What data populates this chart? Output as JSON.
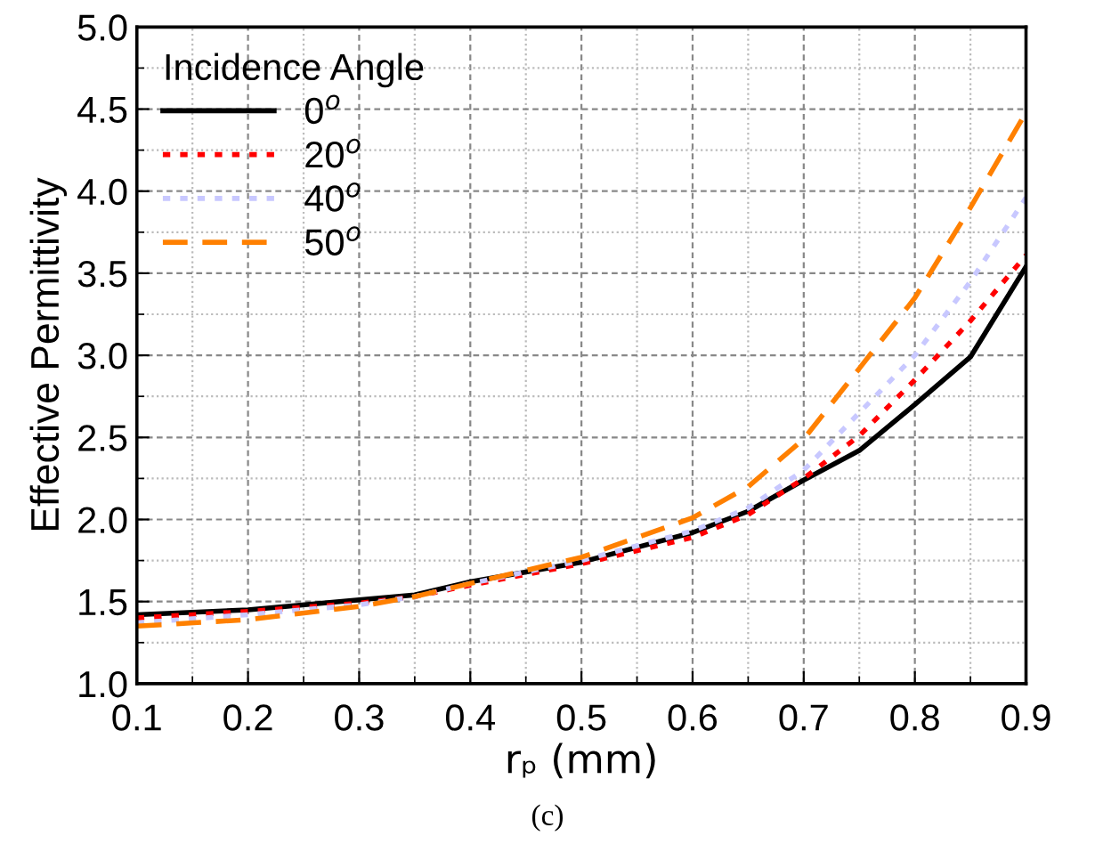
{
  "chart_data": {
    "type": "line",
    "xlabel": "rₚ (mm)",
    "ylabel": "Effective Permittivity",
    "legend_title": "Incidence Angle",
    "legend": "top left",
    "grid": true,
    "annotations": [
      "(c)"
    ],
    "xlim": [
      0.1,
      0.9
    ],
    "xticks": [
      0.1,
      0.2,
      0.3,
      0.4,
      0.5,
      0.6,
      0.7,
      0.8,
      0.9
    ],
    "ylim": [
      1.0,
      5.0
    ],
    "yticks": [
      {
        "value": 1,
        "label": "1.0"
      },
      1.5,
      {
        "value": 2,
        "label": "2.0"
      },
      2.5,
      {
        "value": 3,
        "label": "3.0"
      },
      3.5,
      {
        "value": 4,
        "label": "4.0"
      },
      4.5,
      {
        "value": 5,
        "label": "5.0"
      }
    ],
    "x": [
      0.1,
      0.2,
      0.3,
      0.35,
      0.4,
      0.5,
      0.6,
      0.65,
      0.7,
      0.75,
      0.8,
      0.85,
      0.9
    ],
    "series": [
      {
        "name": "0$^{o}$",
        "color": "#000000",
        "line_style": "solid",
        "values": [
          1.42,
          1.45,
          1.51,
          1.54,
          1.62,
          1.74,
          1.92,
          2.05,
          2.24,
          2.42,
          2.7,
          2.99,
          3.54
        ]
      },
      {
        "name": "20$^{o}$",
        "color": "#ff0000",
        "line_style": "dotted",
        "values": [
          1.4,
          1.44,
          1.49,
          1.53,
          1.6,
          1.73,
          1.89,
          2.03,
          2.25,
          2.51,
          2.85,
          3.21,
          3.61
        ]
      },
      {
        "name": "40$^{o}$",
        "color": "#c8c8ff",
        "line_style": "dotted",
        "values": [
          1.37,
          1.42,
          1.48,
          1.53,
          1.61,
          1.75,
          1.93,
          2.07,
          2.3,
          2.65,
          3.0,
          3.45,
          3.96
        ]
      },
      {
        "name": "50$^{o}$",
        "color": "#ff8000",
        "line_style": "dashed",
        "values": [
          1.35,
          1.39,
          1.47,
          1.53,
          1.61,
          1.77,
          2.01,
          2.2,
          2.49,
          2.92,
          3.35,
          3.9,
          4.48
        ]
      }
    ]
  }
}
